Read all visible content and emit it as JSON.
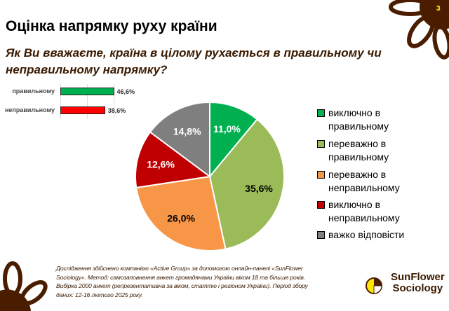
{
  "page_number": "3",
  "title": "Оцінка напрямку руху країни",
  "question": "Як Ви вважаєте, країна в цілому рухається в правильному чи неправильному напрямку?",
  "bar_summary": [
    {
      "label": "правильному",
      "value": 46.6,
      "value_label": "46,6%",
      "color": "#00b050"
    },
    {
      "label": "неправильному",
      "value": 38.6,
      "value_label": "38,6%",
      "color": "#ff0000"
    }
  ],
  "chart_data": {
    "type": "pie",
    "slices": [
      {
        "name": "виключно в правильному",
        "value": 11.0,
        "label": "11,0%",
        "color": "#00b050"
      },
      {
        "name": "переважно в правильному",
        "value": 35.6,
        "label": "35,6%",
        "color": "#9bbb59"
      },
      {
        "name": "переважно в неправильному",
        "value": 26.0,
        "label": "26,0%",
        "color": "#f79646"
      },
      {
        "name": "виключно в неправильному",
        "value": 12.6,
        "label": "12,6%",
        "color": "#c00000"
      },
      {
        "name": "важко відповісти",
        "value": 14.8,
        "label": "14,8%",
        "color": "#7f7f7f"
      }
    ],
    "legend_position": "right"
  },
  "legend": [
    [
      "виключно в",
      "правильному"
    ],
    [
      "переважно в",
      "правильному"
    ],
    [
      "переважно в",
      "неправильному"
    ],
    [
      "виключно в",
      "неправильному"
    ],
    [
      "важко відповісти",
      ""
    ]
  ],
  "footer": "Дослідження здійснено компанією «Active Group» за допомогою онлайн-панелі «SunFlower Sociology». Метод: самозаповнення анкет громадянами України віком 18 та більше років. Вибірка 2000 анкет (репрезентативна за віком, статтю і регіоном України). Період збору даних: 12-16 лютого 2025 року.",
  "logo": {
    "line1": "SunFlower",
    "line2": "Sociology"
  }
}
